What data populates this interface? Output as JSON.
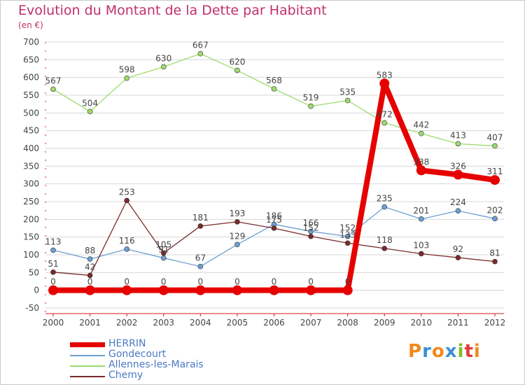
{
  "title": "Evolution du Montant de la Dette par Habitant",
  "unit_label": "(en €)",
  "logo": {
    "text": "Proxiti",
    "letters": [
      "P",
      "r",
      "o",
      "x",
      "i",
      "t",
      "i"
    ],
    "letter_colors": [
      "#f08a1d",
      "#3b8fd6",
      "#f08a1d",
      "#3b8fd6",
      "#7bbf2a",
      "#e33b3b",
      "#f08a1d"
    ]
  },
  "colors": {
    "title": "#c0306a",
    "axis_text": "#444444",
    "grid": "#d8d8d8",
    "axis_red": "#d61818",
    "legend_text": "#4d79c4"
  },
  "chart_data": {
    "type": "line",
    "categories": [
      "2000",
      "2001",
      "2002",
      "2003",
      "2004",
      "2005",
      "2006",
      "2007",
      "2008",
      "2009",
      "2010",
      "2011",
      "2012"
    ],
    "ylim": [
      -50,
      700
    ],
    "yticks": [
      -50,
      0,
      50,
      100,
      150,
      200,
      250,
      300,
      350,
      400,
      450,
      500,
      550,
      600,
      650,
      700
    ],
    "grid": "horizontal",
    "legend_position": "bottom-left",
    "series": [
      {
        "name": "HERRIN",
        "color": "#e60000",
        "thick": true,
        "values": [
          0,
          0,
          0,
          0,
          0,
          0,
          0,
          0,
          0,
          583,
          338,
          326,
          311
        ],
        "labels": [
          "0",
          "0",
          "0",
          "0",
          "0",
          "0",
          "0",
          "0",
          "0",
          "583",
          "338",
          "326",
          "311"
        ]
      },
      {
        "name": "Gondecourt",
        "color": "#6e9fd4",
        "thick": false,
        "values": [
          113,
          88,
          116,
          91,
          67,
          129,
          186,
          166,
          152,
          235,
          201,
          224,
          202
        ],
        "labels": [
          "113",
          "88",
          "116",
          "91",
          "67",
          "129",
          "186",
          "166",
          "152",
          "235",
          "201",
          "224",
          "202"
        ]
      },
      {
        "name": "Allennes-les-Marais",
        "color": "#9ddc6c",
        "thick": false,
        "values": [
          567,
          504,
          598,
          630,
          667,
          620,
          568,
          519,
          535,
          472,
          442,
          413,
          407
        ],
        "labels": [
          "567",
          "504",
          "598",
          "630",
          "667",
          "620",
          "568",
          "519",
          "535",
          "472",
          "442",
          "413",
          "407"
        ]
      },
      {
        "name": "Chemy",
        "color": "#7a2a2a",
        "thick": false,
        "values": [
          51,
          42,
          253,
          105,
          181,
          193,
          175,
          152,
          133,
          118,
          103,
          92,
          81
        ],
        "labels": [
          "51",
          "42",
          "253",
          "105",
          "181",
          "193",
          "175",
          "152",
          "133",
          "118",
          "103",
          "92",
          "81"
        ]
      }
    ]
  }
}
